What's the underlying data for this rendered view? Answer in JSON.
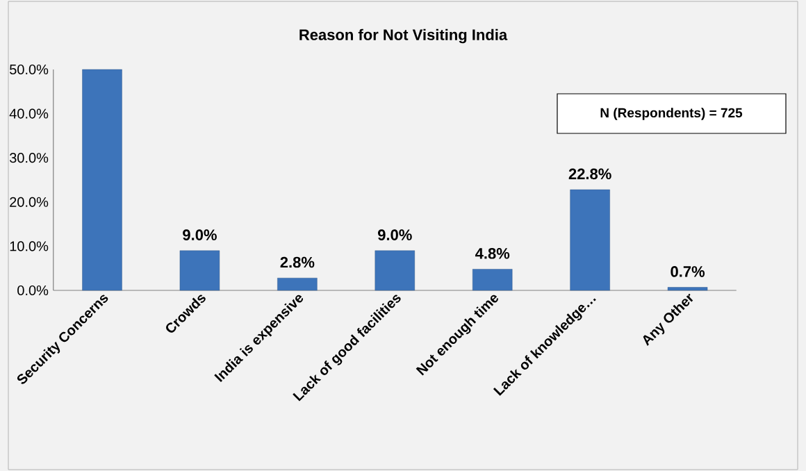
{
  "chart_data": {
    "type": "bar",
    "title": "Reason for Not Visiting India",
    "categories": [
      "Security Concerns",
      "Crowds",
      "India is expensive",
      "Lack of good facilities",
      "Not  enough time",
      "Lack of knowledge…",
      "Any Other"
    ],
    "values": [
      50.0,
      9.0,
      2.8,
      9.0,
      4.8,
      22.8,
      0.7
    ],
    "value_labels": [
      null,
      "9.0%",
      "2.8%",
      "9.0%",
      "4.8%",
      "22.8%",
      "0.7%"
    ],
    "color": "#3d74ba",
    "ylim": [
      0,
      50
    ],
    "yticks": [
      {
        "value": 0,
        "label": "0.0%"
      },
      {
        "value": 10,
        "label": "10.0%"
      },
      {
        "value": 20,
        "label": "20.0%"
      },
      {
        "value": 30,
        "label": "30.0%"
      },
      {
        "value": 40,
        "label": "40.0%"
      },
      {
        "value": 50,
        "label": "50.0%"
      }
    ],
    "annotations": [
      "N (Respondents) = 725"
    ]
  }
}
